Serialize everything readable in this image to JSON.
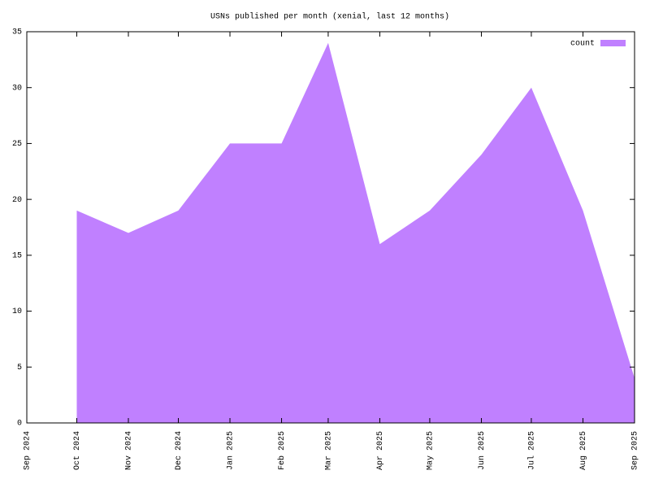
{
  "chart_data": {
    "type": "area",
    "title": "USNs published per month (xenial, last 12 months)",
    "x": [
      "Oct 2024",
      "Nov 2024",
      "Dec 2024",
      "Jan 2025",
      "Feb 2025",
      "Mar 2025",
      "Apr 2025",
      "May 2025",
      "Jun 2025",
      "Jul 2025",
      "Aug 2025",
      "Sep 2025"
    ],
    "series": [
      {
        "name": "count",
        "color": "#c080ff",
        "values": [
          19,
          17,
          19,
          25,
          25,
          34,
          16,
          19,
          24,
          30,
          19,
          4
        ]
      }
    ],
    "xlim": [
      "Sep 2024",
      "Sep 2025"
    ],
    "xticks": [
      "Sep 2024",
      "Oct 2024",
      "Nov 2024",
      "Dec 2024",
      "Jan 2025",
      "Feb 2025",
      "Mar 2025",
      "Apr 2025",
      "May 2025",
      "Jun 2025",
      "Jul 2025",
      "Aug 2025",
      "Sep 2025"
    ],
    "ylim": [
      0,
      35
    ],
    "yticks": [
      0,
      5,
      10,
      15,
      20,
      25,
      30,
      35
    ],
    "grid": false,
    "legend": "top-right"
  }
}
